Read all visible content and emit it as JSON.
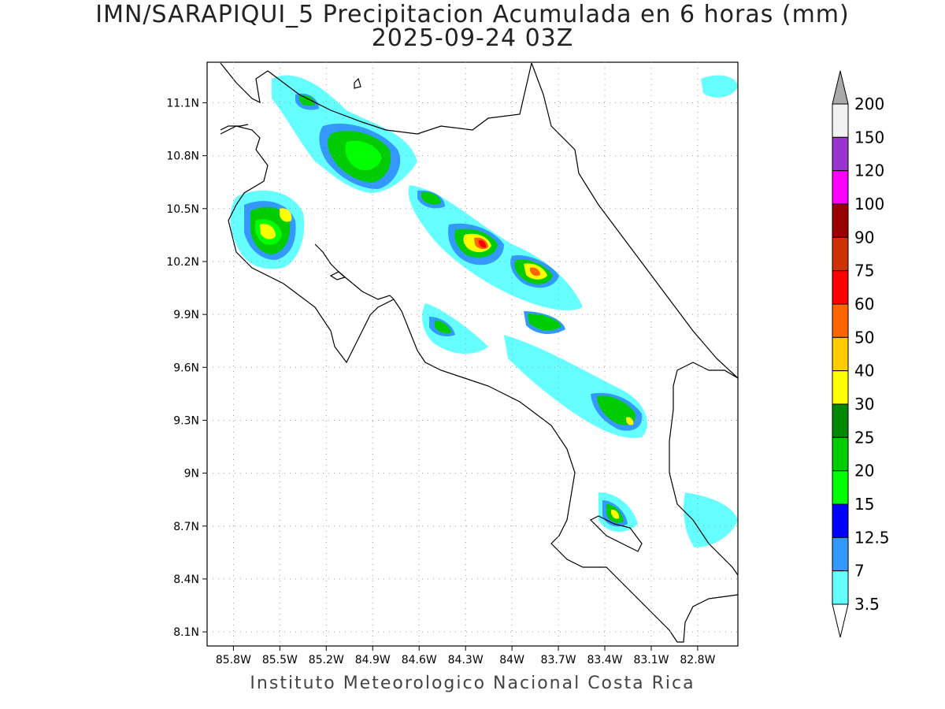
{
  "title": {
    "line1": "IMN/SARAPIQUI_5 Precipitacion Acumulada en 6 horas (mm)",
    "line2": "2025-09-24 03Z"
  },
  "footer": "Instituto Meteorologico Nacional Costa Rica",
  "map": {
    "lon_range": [
      -85.97,
      -82.54
    ],
    "lat_range": [
      8.02,
      11.33
    ],
    "lat_ticks": [
      "11.1N",
      "10.8N",
      "10.5N",
      "10.2N",
      "9.9N",
      "9.6N",
      "9.3N",
      "9N",
      "8.7N",
      "8.4N",
      "8.1N"
    ],
    "lon_ticks": [
      "85.8W",
      "85.5W",
      "85.2W",
      "84.9W",
      "84.6W",
      "84.3W",
      "84W",
      "83.7W",
      "83.4W",
      "83.1W",
      "82.8W"
    ],
    "grid": "dotted"
  },
  "legend": {
    "labels": [
      "200",
      "150",
      "120",
      "100",
      "90",
      "75",
      "60",
      "50",
      "40",
      "30",
      "25",
      "20",
      "15",
      "12.5",
      "7",
      "3.5"
    ],
    "colors": [
      "#f2f2f2",
      "#9933cc",
      "#ff00ff",
      "#990000",
      "#cc3300",
      "#ff0000",
      "#ff6600",
      "#ffcc00",
      "#ffff00",
      "#008800",
      "#00cc00",
      "#00ff00",
      "#0000ff",
      "#3399ff",
      "#66ffff"
    ],
    "overflow_top_color": "#a9a9a9",
    "underflow_bottom_color": "#ffffff"
  }
}
